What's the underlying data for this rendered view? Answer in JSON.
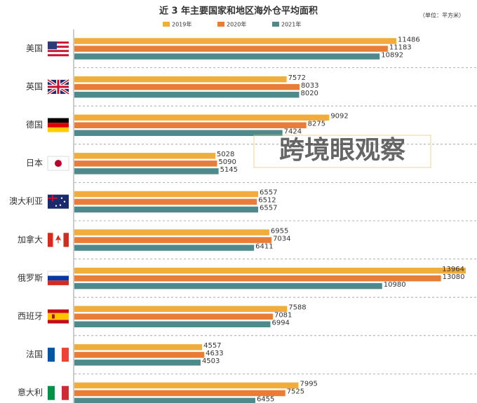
{
  "chart_data": {
    "type": "bar",
    "orientation": "horizontal",
    "title": "近 3 年主要国家和地区海外仓平均面积",
    "subtitle": "（单位：平方米）",
    "watermark": "跨境眼观察",
    "categories": [
      "美国",
      "英国",
      "德国",
      "日本",
      "澳大利亚",
      "加拿大",
      "俄罗斯",
      "西班牙",
      "法国",
      "意大利"
    ],
    "series": [
      {
        "name": "2019年",
        "color": "#f0ad3c",
        "values": [
          11486,
          7572,
          9092,
          5028,
          6557,
          6955,
          13964,
          7588,
          4557,
          7995
        ]
      },
      {
        "name": "2020年",
        "color": "#e87d38",
        "values": [
          11183,
          8033,
          8275,
          5090,
          6512,
          7034,
          13080,
          7081,
          4633,
          7525
        ]
      },
      {
        "name": "2021年",
        "color": "#4e8a8c",
        "values": [
          10892,
          8020,
          7424,
          5145,
          6557,
          6411,
          10980,
          6994,
          4503,
          6455
        ]
      }
    ]
  }
}
